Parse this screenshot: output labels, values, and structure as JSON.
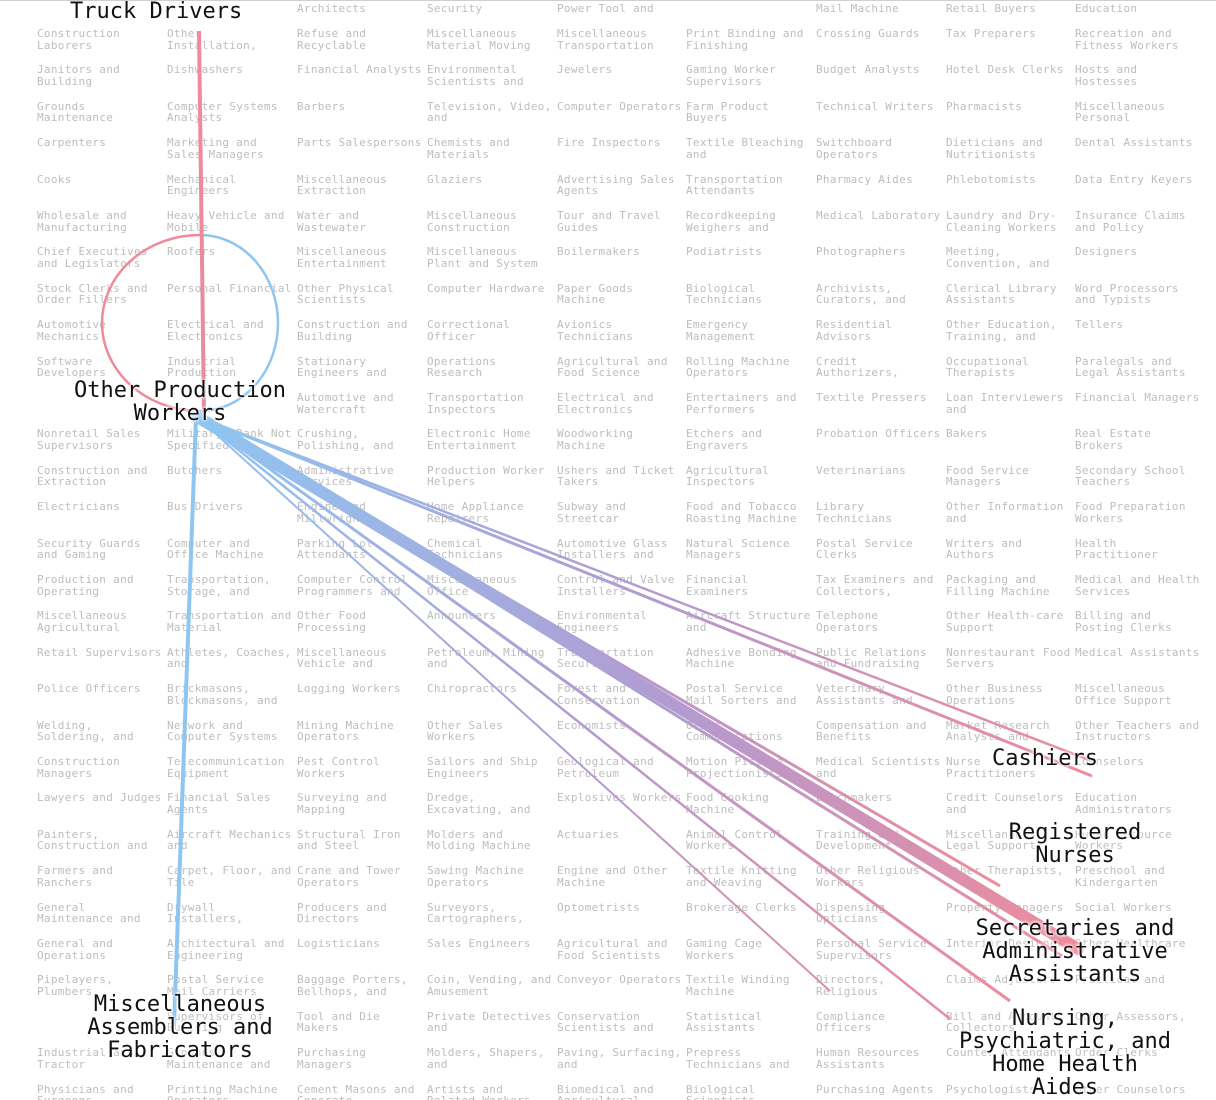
{
  "colors": {
    "inflow": "#f08a9a",
    "outflow": "#8ec6f2",
    "mix": "#b39ad0",
    "grid_text": "#bdbdbd"
  },
  "grid": {
    "columns": [
      [
        "Construction Laborers",
        "Janitors and Building",
        "Grounds Maintenance",
        "Carpenters",
        "Cooks",
        "Wholesale and Manufacturing",
        "Chief Executives and Legislators",
        "Stock Clerks and Order Fillers",
        "Automotive Mechanics",
        "Software Developers",
        "",
        "Nonretail Sales Supervisors",
        "Construction and Extraction",
        "Electricians",
        "Security Guards and Gaming",
        "Production and Operating",
        "Miscellaneous Agricultural",
        "Retail Supervisors",
        "Police Officers",
        "Welding, Soldering, and",
        "Construction Managers",
        "Lawyers and Judges",
        "Painters, Construction and",
        "Farmers and Ranchers",
        "General Maintenance and",
        "General and Operations",
        "Pipelayers, Plumbers,",
        "",
        "Industrial and Tractor",
        "Physicians and Surgeons"
      ],
      [
        "Other Installation,",
        "Dishwashers",
        "Computer Systems Analysts",
        "Marketing and Sales Managers",
        "Mechanical Engineers",
        "Heavy Vehicle and Mobile",
        "Roofers",
        "Personal Financial",
        "Electrical and Electronics",
        "Industrial Production",
        "",
        "Military, Rank Not Specified",
        "Butchers",
        "Bus Drivers",
        "Computer and Office Machine",
        "Transportation, Storage, and",
        "Transportation and Material",
        "Athletes, Coaches, and",
        "Brickmasons, Blockmasons, and",
        "Network and Computer Systems",
        "Telecommunication Equipment",
        "Financial Sales Agents",
        "Aircraft Mechanics and",
        "Carpet, Floor, and Tile",
        "Drywall Installers,",
        "Architectural and Engineering",
        "Postal Service Mail Carriers",
        "Supervisors of Building",
        "Grounds Maintenance and",
        "Printing Machine Operators"
      ],
      [
        "Refuse and Recyclable",
        "Financial Analysts",
        "Barbers",
        "Parts Salespersons",
        "Miscellaneous Extraction",
        "Water and Wastewater",
        "Miscellaneous Entertainment",
        "Other Physical Scientists",
        "Construction and Building",
        "Stationary Engineers and",
        "Automotive and Watercraft",
        "Crushing, Polishing, and",
        "Administrative Services",
        "Engine and Millwrights",
        "Parking Lot Attendants",
        "Computer Control Programmers and",
        "Other Food Processing",
        "Miscellaneous Vehicle and",
        "Logging Workers",
        "Mining Machine Operators",
        "Pest Control Workers",
        "Surveying and Mapping",
        "Structural Iron and Steel",
        "Crane and Tower Operators",
        "Producers and Directors",
        "Logisticians",
        "Baggage Porters, Bellhops, and",
        "Tool and Die Makers",
        "Purchasing Managers",
        "Cement Masons and Concrete"
      ],
      [
        "Miscellaneous Material Moving",
        "Environmental Scientists and",
        "Television, Video, and",
        "Chemists and Materials",
        "Glaziers",
        "Miscellaneous Construction",
        "Miscellaneous Plant and System",
        "Computer Hardware",
        "Correctional Officer",
        "Operations Research",
        "Transportation Inspectors",
        "Electronic Home Entertainment",
        "Production Worker Helpers",
        "Home Appliance Repairers",
        "Chemical Technicians",
        "Miscellaneous Office",
        "Announcers",
        "Petroleum, Mining and",
        "Chiropractors",
        "Other Sales Workers",
        "Sailors and Ship Engineers",
        "Dredge, Excavating, and",
        "Molders and Molding Machine",
        "Sawing Machine Operators",
        "Surveyors, Cartographers,",
        "Sales Engineers",
        "Coin, Vending, and Amusement",
        "Private Detectives and",
        "Molders, Shapers, and",
        "Artists and Related Workers"
      ],
      [
        "Miscellaneous Transportation",
        "Jewelers",
        "Computer Operators",
        "Fire Inspectors",
        "Advertising Sales Agents",
        "Tour and Travel Guides",
        "Boilermakers",
        "Paper Goods Machine",
        "Avionics Technicians",
        "Agricultural and Food Science",
        "Electrical and Electronics",
        "Woodworking Machine",
        "Ushers and Ticket Takers",
        "Subway and Streetcar",
        "Automotive Glass Installers and",
        "Control and Valve Installers",
        "Environmental Engineers",
        "Transportation Security",
        "Forest and Conservation",
        "Economists",
        "Geological and Petroleum",
        "Explosives Workers",
        "Actuaries",
        "Engine and Other Machine",
        "Optometrists",
        "Agricultural and Food Scientists",
        "Conveyor Operators",
        "Conservation Scientists and",
        "Paving, Surfacing, and",
        "Biomedical and Agricultural"
      ],
      [
        "Print Binding and Finishing",
        "Gaming Worker Supervisors",
        "Farm Product Buyers",
        "Textile Bleaching and",
        "Transportation Attendants",
        "Recordkeeping Weighers and",
        "Podiatrists",
        "Biological Technicians",
        "Emergency Management",
        "Rolling Machine Operators",
        "Entertainers and Performers",
        "Etchers and Engravers",
        "Agricultural Inspectors",
        "Food and Tobacco Roasting Machine",
        "Natural Science Managers",
        "Financial Examiners",
        "Aircraft Structure and",
        "Adhesive Bonding Machine",
        "Postal Service Mail Sorters and",
        "Other Communications",
        "Motion Picture Projectionists",
        "Food Cooking Machine",
        "Animal Control Workers",
        "Textile Knitting and Weaving",
        "Brokerage Clerks",
        "Gaming Cage Workers",
        "Textile Winding Machine",
        "Statistical Assistants",
        "Prepress Technicians and",
        "Biological Scientists"
      ],
      [
        "Crossing Guards",
        "Budget Analysts",
        "Technical Writers",
        "Switchboard Operators",
        "Pharmacy Aides",
        "Medical Laboratory",
        "Photographers",
        "Archivists, Curators, and",
        "Residential Advisors",
        "Credit Authorizers,",
        "Textile Pressers",
        "Probation Officers",
        "Veterinarians",
        "Library Technicians",
        "Postal Service Clerks",
        "Tax Examiners and Collectors,",
        "Telephone Operators",
        "Public Relations and Fundraising",
        "Veterinary Assistants and",
        "Compensation and Benefits",
        "Medical Scientists and",
        "Batchmakers",
        "Training and Development",
        "Other Religious Workers",
        "Dispensing Opticians",
        "Personal Service Supervisors",
        "Directors, Religious",
        "Compliance Officers",
        "Human Resources Assistants",
        "Purchasing Agents"
      ],
      [
        "Tax Preparers",
        "Hotel Desk Clerks",
        "Pharmacists",
        "Dieticians and Nutritionists",
        "Phlebotomists",
        "Laundry and Dry-Cleaning Workers",
        "Meeting, Convention, and",
        "Clerical Library Assistants",
        "Other Education, Training, and",
        "Occupational Therapists",
        "Loan Interviewers and",
        "Bakers",
        "Food Service Managers",
        "Other Information and",
        "Writers and Authors",
        "Packaging and Filling Machine",
        "Other Health-care Support",
        "Nonrestaurant Food Servers",
        "Other Business Operations",
        "Market Research Analysts and",
        "Nurse Practitioners",
        "Credit Counselors and",
        "Miscellaneous Legal Support",
        "Other Therapists,",
        "Property Managers",
        "Interior Designers",
        "Claims Adjusters",
        "Bill and Account Collectors",
        "Counter Attendants",
        "Psychologists"
      ],
      [
        "Recreation and Fitness Workers",
        "Hosts and Hostesses",
        "Miscellaneous Personal",
        "Dental Assistants",
        "Data Entry Keyers",
        "Insurance Claims and Policy",
        "Designers",
        "Word Processors and Typists",
        "Tellers",
        "Paralegals and Legal Assistants",
        "Financial Managers",
        "Real Estate Brokers",
        "Secondary School Teachers",
        "Food Preparation Workers",
        "Health Practitioner",
        "Medical and Health Services",
        "Billing and Posting Clerks",
        "Medical Assistants",
        "Miscellaneous Office Support",
        "Other Teachers and Instructors",
        "Counselors",
        "Education Administrators",
        "Human Resource Workers",
        "Preschool and Kindergarten",
        "Social Workers",
        "Other Healthcare",
        "Practical and",
        "Other Assessors,",
        "Order Clerks",
        "Other Counselors"
      ]
    ],
    "top_row": [
      "Architects",
      "Security",
      "Power Tool and",
      "Mail Machine",
      "Retail Buyers",
      "Education"
    ]
  },
  "labels": {
    "source_top": "Truck Drivers",
    "center": "Other Production\nWorkers",
    "bottom_left": "Miscellaneous\nAssemblers and\nFabricators",
    "cashiers": "Cashiers",
    "nurses": "Registered\nNurses",
    "secretaries": "Secretaries and\nAdministrative\nAssistants",
    "nursing_aides": "Nursing,\nPsychiatric, and\nHome Health\nAides"
  },
  "flows": {
    "hub": "Other Production Workers",
    "inbound": [
      {
        "from": "Truck Drivers",
        "weight": 1
      },
      {
        "from": "Other Production Workers",
        "weight": 1,
        "loop": true
      }
    ],
    "outbound": [
      {
        "to": "Miscellaneous Assemblers and Fabricators",
        "weight": 1
      },
      {
        "to": "Secretaries and Administrative Assistants",
        "weight": 8
      },
      {
        "to": "Registered Nurses",
        "weight": 2
      },
      {
        "to": "Cashiers",
        "weight": 1.5
      },
      {
        "to": "Nursing, Psychiatric, and Home Health Aides",
        "weight": 1.5
      },
      {
        "to": "Secretaries and Administrative Assistants",
        "weight": 1.2
      },
      {
        "to": "Nursing, Psychiatric, and Home Health Aides",
        "weight": 1
      }
    ]
  }
}
